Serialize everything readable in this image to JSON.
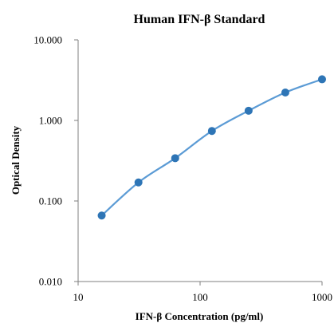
{
  "chart_data": {
    "type": "scatter",
    "title": "Human IFN-β Standard",
    "xlabel": "IFN-β Concentration (pg/ml)",
    "ylabel": "Optical Density",
    "x_scale": "log",
    "y_scale": "log",
    "xlim": [
      10,
      1000
    ],
    "ylim": [
      0.01,
      10
    ],
    "x_ticks": [
      "10",
      "100",
      "1000"
    ],
    "y_ticks": [
      "0.010",
      "0.100",
      "1.000",
      "10.000"
    ],
    "grid": false,
    "legend": "none",
    "series": [
      {
        "x": [
          15.6,
          31.25,
          62.5,
          125,
          250,
          500,
          1000
        ],
        "y": [
          0.066,
          0.17,
          0.34,
          0.74,
          1.32,
          2.22,
          3.24
        ],
        "marker_color": "#2e75b6",
        "line_color": "#5b9bd5"
      }
    ]
  }
}
